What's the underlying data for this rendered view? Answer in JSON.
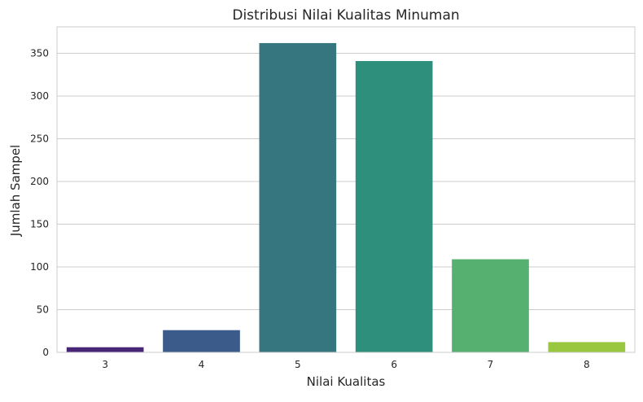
{
  "chart_data": {
    "type": "bar",
    "title": "Distribusi Nilai Kualitas Minuman",
    "xlabel": "Nilai Kualitas",
    "ylabel": "Jumlah Sampel",
    "categories": [
      "3",
      "4",
      "5",
      "6",
      "7",
      "8"
    ],
    "values": [
      6,
      26,
      362,
      341,
      109,
      12
    ],
    "colors": [
      "#482677",
      "#3b5b8a",
      "#35767f",
      "#2e8f7c",
      "#56b171",
      "#9ac740"
    ],
    "ylim": [
      0,
      381
    ],
    "yticks": [
      0,
      50,
      100,
      150,
      200,
      250,
      300,
      350
    ],
    "grid": true,
    "grid_axis": "y",
    "legend": false
  }
}
